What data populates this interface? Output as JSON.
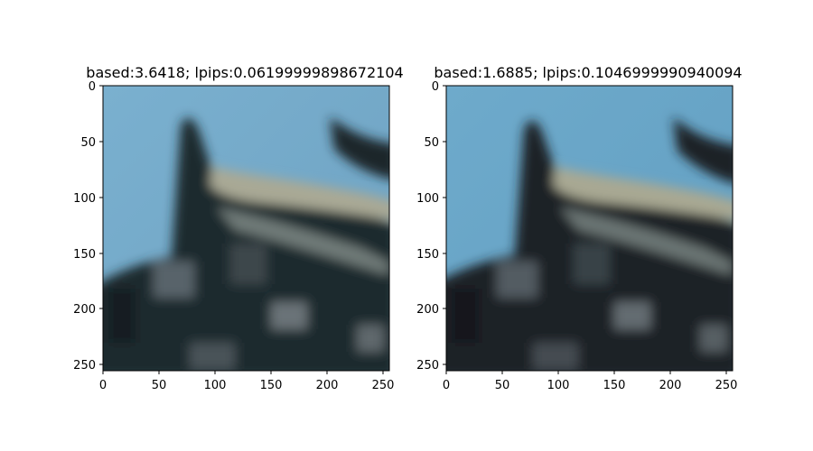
{
  "figure": {
    "panels": [
      {
        "title": "based:3.6418; lpips:0.06199999898672104",
        "image_description_icon": "blurred-roof-eave-photo",
        "x_ticks": [
          "0",
          "50",
          "100",
          "150",
          "200",
          "250"
        ],
        "y_ticks": [
          "0",
          "50",
          "100",
          "150",
          "200",
          "250"
        ]
      },
      {
        "title": "based:1.6885; lpips:0.1046999990940094",
        "image_description_icon": "blurred-roof-eave-photo",
        "x_ticks": [
          "0",
          "50",
          "100",
          "150",
          "200",
          "250"
        ],
        "y_ticks": [
          "0",
          "50",
          "100",
          "150",
          "200",
          "250"
        ]
      }
    ],
    "colors": {
      "sky_left": "#76a9c9",
      "sky_right": "#6aa6c9",
      "roof_dark": "#1c2428",
      "roof_highlight": "#b9b8a2"
    }
  }
}
